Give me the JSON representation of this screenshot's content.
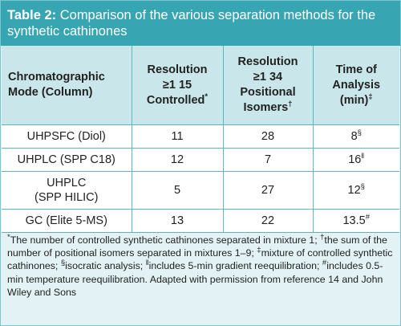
{
  "title": {
    "label": "Table 2:",
    "text": " Comparison of the various separation methods for the synthetic cathinones"
  },
  "header": {
    "mode": "Chromatographic Mode (Column)",
    "resolution_controlled_l1": "Resolution",
    "resolution_controlled_l2": "≥1 15",
    "resolution_controlled_l3": "Controlled",
    "resolution_controlled_mark": "*",
    "resolution_positional_l1": "Resolution",
    "resolution_positional_l2": "≥1 34",
    "resolution_positional_l3": "Positional",
    "resolution_positional_l4": "Isomers",
    "resolution_positional_mark": "†",
    "time_l1": "Time of",
    "time_l2": "Analysis",
    "time_l3": "(min)",
    "time_mark": "‡"
  },
  "rows": [
    {
      "mode": "UHPSFC (Diol)",
      "controlled": "11",
      "positional": "28",
      "time": "8",
      "time_mark": "§"
    },
    {
      "mode": "UHPLC (SPP C18)",
      "controlled": "12",
      "positional": "7",
      "time": "16",
      "time_mark": "ǁ"
    },
    {
      "mode_l1": "UHPLC",
      "mode_l2": "(SPP HILIC)",
      "controlled": "5",
      "positional": "27",
      "time": "12",
      "time_mark": "§"
    },
    {
      "mode": "GC (Elite 5-MS)",
      "controlled": "13",
      "positional": "22",
      "time": "13.5",
      "time_mark": "#"
    }
  ],
  "footnote": {
    "m1": "*",
    "t1": "The number of controlled synthetic cathinones separated in mixture 1; ",
    "m2": "†",
    "t2": "the sum of the number of positional isomers separated in mixtures 1–9; ",
    "m3": "‡",
    "t3": "mixture of controlled synthetic cathinones; ",
    "m4": "§",
    "t4": "isocratic analysis; ",
    "m5": "ǁ",
    "t5": "includes 5-min gradient reequilibration; ",
    "m6": "#",
    "t6": "includes 0.5-min temperature reequilibration. Adapted with permission from reference 14 and John Wiley and Sons"
  }
}
